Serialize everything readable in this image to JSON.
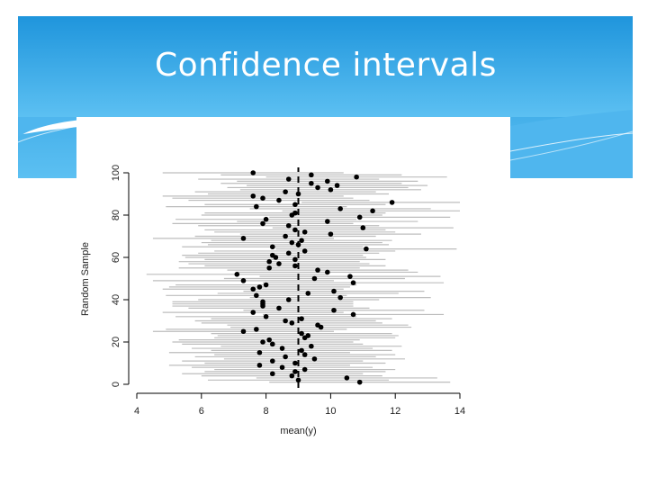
{
  "slide": {
    "title": "Confidence intervals",
    "accent_color": "#2ba3e6"
  },
  "chart_data": {
    "type": "scatter",
    "description_type": "confidence-interval plot",
    "title": "",
    "xlabel": "mean(y)",
    "ylabel": "Random Sample",
    "xlim": [
      4,
      14
    ],
    "ylim": [
      0,
      100
    ],
    "xticks": [
      "4",
      "6",
      "8",
      "10",
      "12",
      "14"
    ],
    "yticks": [
      "0",
      "20",
      "40",
      "60",
      "80",
      "100"
    ],
    "reference_line": 9,
    "grid": false,
    "series": [
      {
        "sample": [
          1,
          2,
          3,
          4,
          5,
          6,
          7,
          8,
          9,
          10,
          11,
          12,
          13,
          14,
          15,
          16,
          17,
          18,
          19,
          20,
          21,
          22,
          23,
          24,
          25,
          26,
          27,
          28,
          29,
          30,
          31,
          32,
          33,
          34,
          35,
          36,
          37,
          38,
          39,
          40,
          41,
          42,
          43,
          44,
          45,
          46,
          47,
          48,
          49,
          50,
          51,
          52,
          53,
          54,
          55,
          56,
          57,
          58,
          59,
          60,
          61,
          62,
          63,
          64,
          65,
          66,
          67,
          68,
          69,
          70,
          71,
          72,
          73,
          74,
          75,
          76,
          77,
          78,
          79,
          80,
          81,
          82,
          83,
          84,
          85,
          86,
          87,
          88,
          89,
          90,
          91,
          92,
          93,
          94,
          95,
          96,
          97,
          98,
          99,
          100
        ],
        "mean": [
          10.9,
          9.0,
          10.5,
          8.8,
          8.2,
          8.9,
          9.2,
          8.5,
          7.8,
          8.9,
          8.2,
          9.5,
          8.6,
          9.2,
          7.8,
          9.1,
          8.5,
          9.4,
          8.2,
          7.9,
          8.1,
          9.2,
          9.3,
          9.1,
          7.3,
          7.7,
          9.7,
          9.6,
          8.8,
          8.6,
          9.1,
          8.0,
          10.7,
          7.6,
          10.1,
          8.4,
          7.9,
          7.9,
          7.9,
          8.7,
          10.3,
          7.7,
          9.3,
          10.1,
          7.6,
          7.8,
          8.0,
          10.7,
          7.3,
          9.5,
          10.6,
          7.1,
          9.9,
          9.6,
          8.1,
          8.9,
          8.4,
          8.1,
          8.9,
          8.3,
          8.2,
          8.7,
          9.2,
          11.1,
          8.2,
          9.0,
          8.8,
          9.1,
          7.3,
          8.6,
          10.0,
          9.2,
          8.9,
          11.0,
          8.7,
          7.9,
          9.9,
          8.0,
          10.9,
          8.8,
          8.9,
          11.3,
          10.3,
          7.7,
          8.9,
          11.9,
          8.4,
          7.9,
          7.6,
          9.0,
          8.6,
          10.0,
          9.6,
          10.2,
          9.4,
          9.9,
          8.7,
          10.8,
          9.4,
          7.6
        ],
        "half_width": 2.8
      }
    ]
  }
}
